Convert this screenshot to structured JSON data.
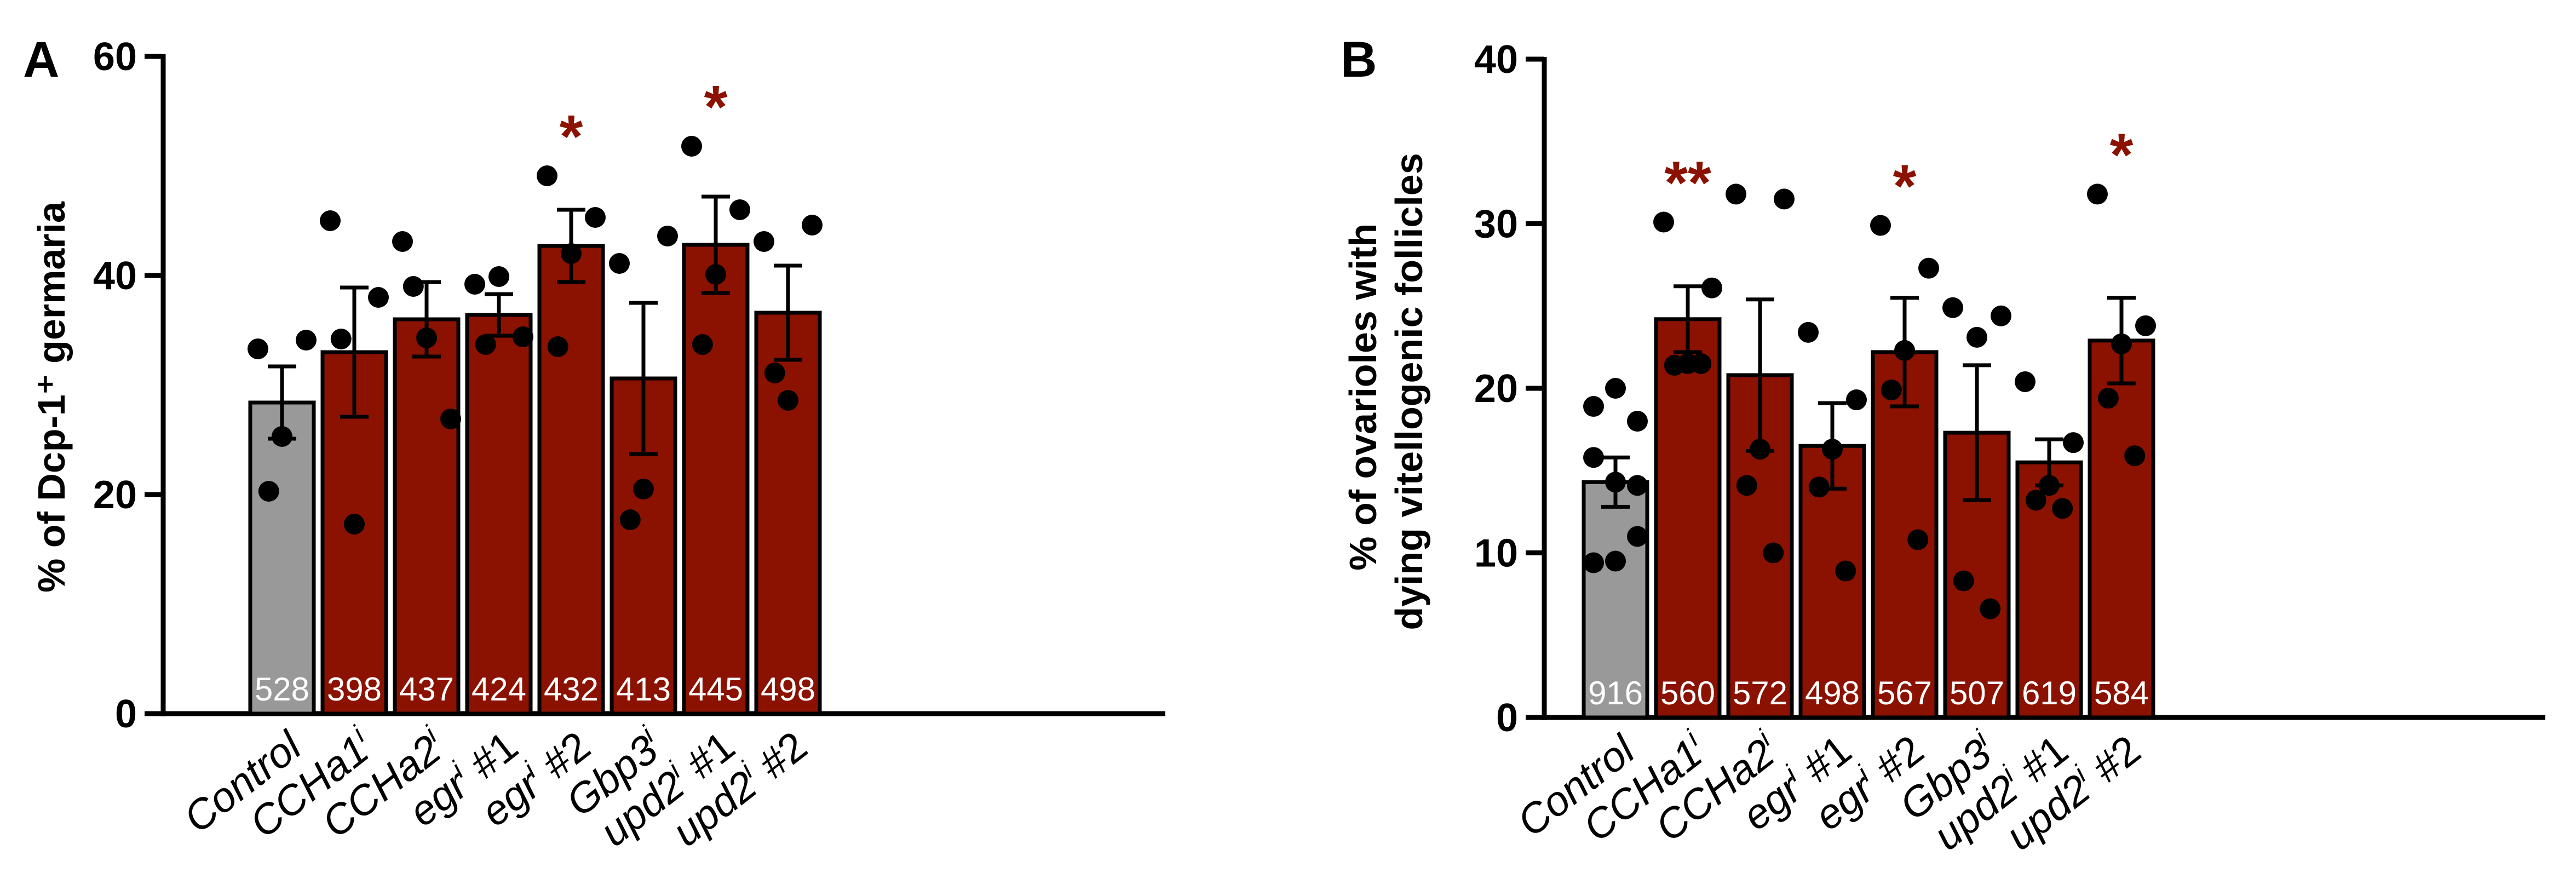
{
  "figure": {
    "bar_color_control": "#999999",
    "bar_color_treatment": "#8B1200",
    "significance_color": "#8B1200",
    "point_color": "#000000",
    "n_label_color": "#ffffff"
  },
  "chart_data": [
    {
      "panel": "A",
      "type": "bar",
      "title": "",
      "ylabel": "% of Dcp-1⁺ germaria",
      "xlabel": "",
      "ylim": [
        0,
        60
      ],
      "yticks": [
        "0",
        "20",
        "40",
        "60"
      ],
      "categories": [
        {
          "base": "Control",
          "sup": "",
          "suffix": ""
        },
        {
          "base": "CCHa1",
          "sup": "i",
          "suffix": ""
        },
        {
          "base": "CCHa2",
          "sup": "i",
          "suffix": ""
        },
        {
          "base": "egr",
          "sup": "i",
          "suffix": " #1"
        },
        {
          "base": "egr",
          "sup": "i",
          "suffix": " #2"
        },
        {
          "base": "Gbp3",
          "sup": "i",
          "suffix": ""
        },
        {
          "base": "upd2",
          "sup": "i",
          "suffix": " #1"
        },
        {
          "base": "upd2",
          "sup": "i",
          "suffix": " #2"
        }
      ],
      "values": [
        28.4,
        33.0,
        36.0,
        36.4,
        42.7,
        30.6,
        42.8,
        36.6
      ],
      "sem": [
        3.3,
        5.9,
        3.4,
        1.9,
        3.3,
        6.9,
        4.4,
        4.3
      ],
      "points": [
        [
          33.3,
          34.1,
          25.3,
          20.3
        ],
        [
          45.0,
          38.0,
          17.3,
          34.2
        ],
        [
          43.1,
          26.9,
          34.3,
          39.0
        ],
        [
          39.2,
          34.4,
          39.9,
          33.7
        ],
        [
          49.1,
          45.3,
          42.0,
          33.5
        ],
        [
          41.1,
          43.6,
          20.5,
          17.7
        ],
        [
          51.8,
          46.0,
          40.1,
          33.7
        ],
        [
          43.1,
          44.6,
          28.6,
          31.1
        ]
      ],
      "n_labels": [
        "528",
        "398",
        "437",
        "424",
        "432",
        "413",
        "445",
        "498"
      ],
      "significance": [
        "",
        "",
        "",
        "",
        "*",
        "",
        "*",
        ""
      ]
    },
    {
      "panel": "B",
      "type": "bar",
      "title": "",
      "ylabel_lines": [
        "% of ovarioles with",
        "dying vitellogenic follicles"
      ],
      "xlabel": "",
      "ylim": [
        0,
        40
      ],
      "yticks": [
        "0",
        "10",
        "20",
        "30",
        "40"
      ],
      "categories": [
        {
          "base": "Control",
          "sup": "",
          "suffix": ""
        },
        {
          "base": "CCHa1",
          "sup": "i",
          "suffix": ""
        },
        {
          "base": "CCHa2",
          "sup": "i",
          "suffix": ""
        },
        {
          "base": "egr",
          "sup": "i",
          "suffix": " #1"
        },
        {
          "base": "egr",
          "sup": "i",
          "suffix": " #2"
        },
        {
          "base": "Gbp3",
          "sup": "i",
          "suffix": ""
        },
        {
          "base": "upd2",
          "sup": "i",
          "suffix": " #1"
        },
        {
          "base": "upd2",
          "sup": "i",
          "suffix": " #2"
        }
      ],
      "values": [
        14.3,
        24.2,
        20.8,
        16.5,
        22.2,
        17.3,
        15.5,
        22.9
      ],
      "sem": [
        1.5,
        2.0,
        4.6,
        2.6,
        3.3,
        4.1,
        1.4,
        2.6
      ],
      "points": [
        [
          18.9,
          20.0,
          18.0,
          15.8,
          14.3,
          14.1,
          9.4,
          9.5,
          11.0
        ],
        [
          30.1,
          26.1,
          21.5,
          21.4,
          21.5
        ],
        [
          31.8,
          31.5,
          16.3,
          14.1,
          10.0
        ],
        [
          23.4,
          19.3,
          16.3,
          14.0,
          8.9
        ],
        [
          29.9,
          27.3,
          22.3,
          19.9,
          10.8
        ],
        [
          24.9,
          24.4,
          23.1,
          8.3,
          6.6
        ],
        [
          20.4,
          16.7,
          14.1,
          13.2,
          12.7
        ],
        [
          31.8,
          23.8,
          22.7,
          19.4,
          15.9
        ]
      ],
      "n_labels": [
        "916",
        "560",
        "572",
        "498",
        "567",
        "507",
        "619",
        "584"
      ],
      "significance": [
        "",
        "**",
        "",
        "",
        "*",
        "",
        "",
        "*"
      ]
    }
  ]
}
